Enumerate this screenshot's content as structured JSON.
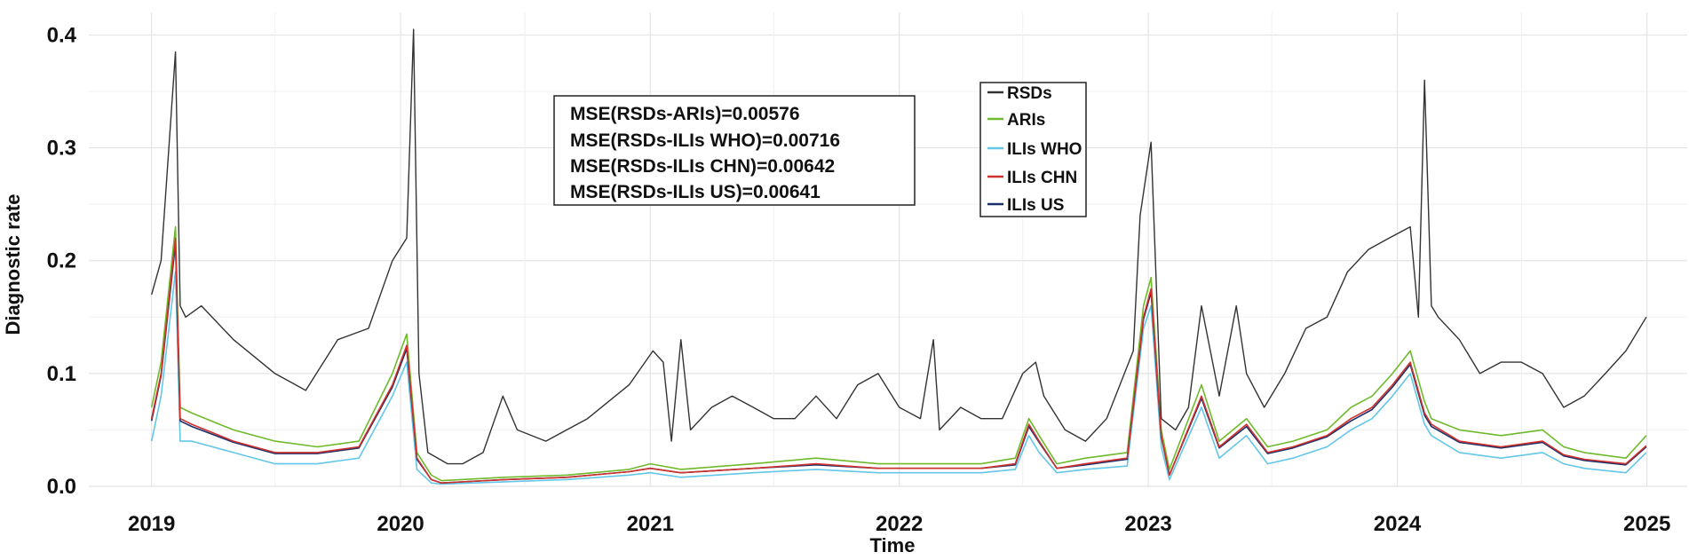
{
  "chart_data": {
    "type": "line",
    "xlabel": "Time",
    "ylabel": "Diagnostic rate",
    "xlim": [
      "2018-10",
      "2025-03"
    ],
    "ylim": [
      0,
      0.42
    ],
    "x_ticks": [
      "2019",
      "2020",
      "2021",
      "2022",
      "2023",
      "2024",
      "2025"
    ],
    "y_ticks": [
      "0.0",
      "0.1",
      "0.2",
      "0.3",
      "0.4"
    ],
    "grid": true,
    "legend_position": "top-center",
    "annotation_lines": [
      "MSE(RSDs-ARIs)=0.00576",
      "MSE(RSDs-ILIs WHO)=0.00716",
      "MSE(RSDs-ILIs CHN)=0.00642",
      "MSE(RSDs-ILIs US)=0.00641"
    ],
    "series": [
      {
        "name": "RSDs",
        "color": "#333333",
        "x": [
          "2019-01",
          "2019-01-15",
          "2019-02-05",
          "2019-02-12",
          "2019-02-20",
          "2019-03-15",
          "2019-05",
          "2019-07",
          "2019-08-15",
          "2019-10",
          "2019-11-15",
          "2019-12-20",
          "2020-01-10",
          "2020-01-20",
          "2020-01-28",
          "2020-02-10",
          "2020-03-10",
          "2020-04",
          "2020-05",
          "2020-05-30",
          "2020-06-20",
          "2020-08",
          "2020-10",
          "2020-12",
          "2021-01-05",
          "2021-01-20",
          "2021-02-01",
          "2021-02-15",
          "2021-03-01",
          "2021-04",
          "2021-05",
          "2021-06",
          "2021-07",
          "2021-08",
          "2021-09",
          "2021-10",
          "2021-11",
          "2021-12",
          "2022-01",
          "2022-02",
          "2022-02-20",
          "2022-03",
          "2022-04",
          "2022-05",
          "2022-06",
          "2022-07",
          "2022-07-20",
          "2022-08",
          "2022-09",
          "2022-10",
          "2022-11",
          "2022-12-10",
          "2022-12-20",
          "2023-01-05",
          "2023-01-20",
          "2023-02-10",
          "2023-03-01",
          "2023-03-20",
          "2023-04-15",
          "2023-05-10",
          "2023-05-25",
          "2023-06-20",
          "2023-07-20",
          "2023-08-20",
          "2023-09-20",
          "2023-10-20",
          "2023-11-20",
          "2023-12-20",
          "2024-01-20",
          "2024-02-01",
          "2024-02-10",
          "2024-02-20",
          "2024-03",
          "2024-04",
          "2024-05",
          "2024-06",
          "2024-07",
          "2024-08",
          "2024-09",
          "2024-10",
          "2024-11",
          "2024-12",
          "2024-12-31"
        ],
        "values": [
          0.17,
          0.2,
          0.385,
          0.16,
          0.15,
          0.16,
          0.13,
          0.1,
          0.085,
          0.13,
          0.14,
          0.2,
          0.22,
          0.405,
          0.1,
          0.03,
          0.02,
          0.02,
          0.03,
          0.08,
          0.05,
          0.04,
          0.06,
          0.09,
          0.12,
          0.11,
          0.04,
          0.13,
          0.05,
          0.07,
          0.08,
          0.07,
          0.06,
          0.06,
          0.08,
          0.06,
          0.09,
          0.1,
          0.07,
          0.06,
          0.13,
          0.05,
          0.07,
          0.06,
          0.06,
          0.1,
          0.11,
          0.08,
          0.05,
          0.04,
          0.06,
          0.12,
          0.24,
          0.305,
          0.06,
          0.05,
          0.07,
          0.16,
          0.08,
          0.16,
          0.1,
          0.07,
          0.1,
          0.14,
          0.15,
          0.19,
          0.21,
          0.22,
          0.23,
          0.15,
          0.36,
          0.16,
          0.15,
          0.13,
          0.1,
          0.11,
          0.11,
          0.1,
          0.07,
          0.08,
          0.1,
          0.12,
          0.15
        ]
      },
      {
        "name": "ARIs",
        "color": "#6fba2c",
        "x": [
          "2019-01",
          "2019-01-15",
          "2019-02-05",
          "2019-02-12",
          "2019-03",
          "2019-05",
          "2019-07",
          "2019-09",
          "2019-11",
          "2019-12-20",
          "2020-01-10",
          "2020-01-25",
          "2020-02-15",
          "2020-03",
          "2020-06",
          "2020-09",
          "2020-12",
          "2021-01",
          "2021-02-15",
          "2021-06",
          "2021-09",
          "2021-12",
          "2022-02",
          "2022-05",
          "2022-06-20",
          "2022-07-10",
          "2022-07-25",
          "2022-08-20",
          "2022-10",
          "2022-12-01",
          "2022-12-25",
          "2023-01-05",
          "2023-01-20",
          "2023-02",
          "2023-03-20",
          "2023-04-15",
          "2023-05-25",
          "2023-06-25",
          "2023-08",
          "2023-09-20",
          "2023-10-25",
          "2023-11-25",
          "2023-12-25",
          "2024-01-20",
          "2024-02-10",
          "2024-02-20",
          "2024-04",
          "2024-06",
          "2024-08",
          "2024-09",
          "2024-10",
          "2024-12",
          "2024-12-31"
        ],
        "values": [
          0.07,
          0.11,
          0.23,
          0.07,
          0.065,
          0.05,
          0.04,
          0.035,
          0.04,
          0.1,
          0.135,
          0.03,
          0.01,
          0.005,
          0.008,
          0.01,
          0.015,
          0.02,
          0.015,
          0.02,
          0.025,
          0.02,
          0.02,
          0.02,
          0.025,
          0.06,
          0.045,
          0.02,
          0.025,
          0.03,
          0.16,
          0.185,
          0.05,
          0.015,
          0.09,
          0.04,
          0.06,
          0.035,
          0.04,
          0.05,
          0.07,
          0.08,
          0.1,
          0.12,
          0.075,
          0.06,
          0.05,
          0.045,
          0.05,
          0.035,
          0.03,
          0.025,
          0.045
        ]
      },
      {
        "name": "ILIs WHO",
        "color": "#63c7e8",
        "x": [
          "2019-01",
          "2019-01-15",
          "2019-02-05",
          "2019-02-12",
          "2019-03",
          "2019-05",
          "2019-07",
          "2019-09",
          "2019-11",
          "2019-12-20",
          "2020-01-10",
          "2020-01-25",
          "2020-02-15",
          "2020-03",
          "2020-06",
          "2020-09",
          "2020-12",
          "2021-01",
          "2021-02-15",
          "2021-06",
          "2021-09",
          "2021-12",
          "2022-02",
          "2022-05",
          "2022-06-20",
          "2022-07-10",
          "2022-07-25",
          "2022-08-20",
          "2022-10",
          "2022-12-01",
          "2022-12-25",
          "2023-01-05",
          "2023-01-20",
          "2023-02",
          "2023-03-20",
          "2023-04-15",
          "2023-05-25",
          "2023-06-25",
          "2023-08",
          "2023-09-20",
          "2023-10-25",
          "2023-11-25",
          "2023-12-25",
          "2024-01-20",
          "2024-02-10",
          "2024-02-20",
          "2024-04",
          "2024-06",
          "2024-08",
          "2024-09",
          "2024-10",
          "2024-12",
          "2024-12-31"
        ],
        "values": [
          0.04,
          0.08,
          0.19,
          0.04,
          0.04,
          0.03,
          0.02,
          0.02,
          0.025,
          0.08,
          0.11,
          0.015,
          0.003,
          0.002,
          0.004,
          0.006,
          0.01,
          0.012,
          0.008,
          0.012,
          0.015,
          0.012,
          0.012,
          0.012,
          0.015,
          0.045,
          0.03,
          0.012,
          0.015,
          0.018,
          0.14,
          0.16,
          0.035,
          0.006,
          0.07,
          0.025,
          0.045,
          0.02,
          0.025,
          0.035,
          0.05,
          0.06,
          0.08,
          0.1,
          0.055,
          0.045,
          0.03,
          0.025,
          0.03,
          0.02,
          0.016,
          0.012,
          0.03
        ]
      },
      {
        "name": "ILIs CHN",
        "color": "#d0312d",
        "x": [
          "2019-01",
          "2019-01-15",
          "2019-02-05",
          "2019-02-12",
          "2019-03",
          "2019-05",
          "2019-07",
          "2019-09",
          "2019-11",
          "2019-12-20",
          "2020-01-10",
          "2020-01-25",
          "2020-02-15",
          "2020-03",
          "2020-06",
          "2020-09",
          "2020-12",
          "2021-01",
          "2021-02-15",
          "2021-06",
          "2021-09",
          "2021-12",
          "2022-02",
          "2022-05",
          "2022-06-20",
          "2022-07-10",
          "2022-07-25",
          "2022-08-20",
          "2022-10",
          "2022-12-01",
          "2022-12-25",
          "2023-01-05",
          "2023-01-20",
          "2023-02",
          "2023-03-20",
          "2023-04-15",
          "2023-05-25",
          "2023-06-25",
          "2023-08",
          "2023-09-20",
          "2023-10-25",
          "2023-11-25",
          "2023-12-25",
          "2024-01-20",
          "2024-02-10",
          "2024-02-20",
          "2024-04",
          "2024-06",
          "2024-08",
          "2024-09",
          "2024-10",
          "2024-12",
          "2024-12-31"
        ],
        "values": [
          0.06,
          0.1,
          0.22,
          0.06,
          0.055,
          0.04,
          0.03,
          0.03,
          0.035,
          0.09,
          0.125,
          0.025,
          0.006,
          0.003,
          0.006,
          0.008,
          0.013,
          0.016,
          0.012,
          0.016,
          0.02,
          0.016,
          0.016,
          0.016,
          0.02,
          0.055,
          0.04,
          0.016,
          0.02,
          0.025,
          0.15,
          0.175,
          0.045,
          0.01,
          0.08,
          0.035,
          0.055,
          0.03,
          0.035,
          0.045,
          0.06,
          0.07,
          0.09,
          0.11,
          0.065,
          0.055,
          0.04,
          0.035,
          0.04,
          0.028,
          0.024,
          0.02,
          0.036
        ]
      },
      {
        "name": "ILIs US",
        "color": "#1b2f6b",
        "x": [
          "2019-01",
          "2019-01-15",
          "2019-02-05",
          "2019-02-12",
          "2019-03",
          "2019-05",
          "2019-07",
          "2019-09",
          "2019-11",
          "2019-12-20",
          "2020-01-10",
          "2020-01-25",
          "2020-02-15",
          "2020-03",
          "2020-06",
          "2020-09",
          "2020-12",
          "2021-01",
          "2021-02-15",
          "2021-06",
          "2021-09",
          "2021-12",
          "2022-02",
          "2022-05",
          "2022-06-20",
          "2022-07-10",
          "2022-07-25",
          "2022-08-20",
          "2022-10",
          "2022-12-01",
          "2022-12-25",
          "2023-01-05",
          "2023-01-20",
          "2023-02",
          "2023-03-20",
          "2023-04-15",
          "2023-05-25",
          "2023-06-25",
          "2023-08",
          "2023-09-20",
          "2023-10-25",
          "2023-11-25",
          "2023-12-25",
          "2024-01-20",
          "2024-02-10",
          "2024-02-20",
          "2024-04",
          "2024-06",
          "2024-08",
          "2024-09",
          "2024-10",
          "2024-12",
          "2024-12-31"
        ],
        "values": [
          0.058,
          0.098,
          0.215,
          0.058,
          0.053,
          0.039,
          0.029,
          0.029,
          0.034,
          0.088,
          0.122,
          0.024,
          0.006,
          0.003,
          0.006,
          0.008,
          0.013,
          0.016,
          0.012,
          0.016,
          0.019,
          0.016,
          0.016,
          0.016,
          0.019,
          0.053,
          0.039,
          0.016,
          0.019,
          0.024,
          0.148,
          0.172,
          0.044,
          0.01,
          0.078,
          0.034,
          0.053,
          0.029,
          0.034,
          0.044,
          0.058,
          0.068,
          0.088,
          0.108,
          0.063,
          0.053,
          0.039,
          0.034,
          0.039,
          0.027,
          0.023,
          0.019,
          0.035
        ]
      }
    ]
  }
}
